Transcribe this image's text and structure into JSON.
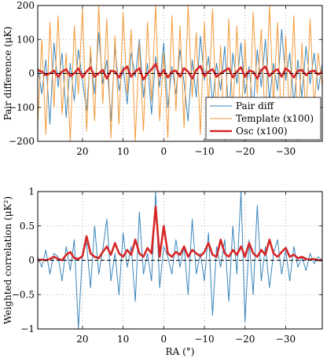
{
  "chart_data": [
    {
      "type": "line",
      "ylabel": "Pair difference (μK)",
      "xlim": [
        31,
        -39
      ],
      "ylim": [
        -200,
        200
      ],
      "xticks": [
        20,
        10,
        0,
        -10,
        -20,
        -30
      ],
      "xtick_labels": [
        "20",
        "10",
        "0",
        "−10",
        "−20",
        "−30"
      ],
      "yticks": [
        -200,
        -100,
        0,
        100,
        200
      ],
      "ytick_labels": [
        "−200",
        "−100",
        "0",
        "100",
        "200"
      ],
      "grid": true,
      "legend_position": "bottom-right",
      "series": [
        {
          "name": "Pair diff",
          "color": "#3a86bb",
          "x": [
            31,
            30,
            29,
            28,
            27,
            26,
            25,
            24,
            23,
            22,
            21,
            20,
            19,
            18,
            17,
            16,
            15,
            14,
            13,
            12,
            11,
            10,
            9,
            8,
            7,
            6,
            5,
            4,
            3,
            2,
            1,
            0,
            -1,
            -2,
            -3,
            -4,
            -5,
            -6,
            -7,
            -8,
            -9,
            -10,
            -11,
            -12,
            -13,
            -14,
            -15,
            -16,
            -17,
            -18,
            -19,
            -20,
            -21,
            -22,
            -23,
            -24,
            -25,
            -26,
            -27,
            -28,
            -29,
            -30,
            -31,
            -32,
            -33,
            -34,
            -35,
            -36,
            -37,
            -38,
            -39
          ],
          "values": [
            20,
            -60,
            40,
            -150,
            90,
            -40,
            60,
            -130,
            30,
            -80,
            70,
            -20,
            -110,
            50,
            -60,
            120,
            -30,
            40,
            -140,
            80,
            -50,
            20,
            -90,
            60,
            -10,
            100,
            -70,
            30,
            -120,
            50,
            -40,
            90,
            -100,
            20,
            -60,
            70,
            -30,
            -140,
            40,
            -70,
            110,
            -20,
            50,
            -90,
            30,
            -50,
            80,
            -130,
            60,
            -30,
            90,
            -60,
            20,
            -110,
            70,
            -40,
            100,
            -80,
            30,
            -50,
            130,
            -20,
            60,
            -90,
            40,
            -70,
            80,
            -30,
            60,
            -50,
            30
          ]
        },
        {
          "name": "Template (x100)",
          "color": "#f39a3a",
          "x": [
            31,
            30,
            29,
            28,
            27,
            26,
            25,
            24,
            23,
            22,
            21,
            20,
            19,
            18,
            17,
            16,
            15,
            14,
            13,
            12,
            11,
            10,
            9,
            8,
            7,
            6,
            5,
            4,
            3,
            2,
            1,
            0,
            -1,
            -2,
            -3,
            -4,
            -5,
            -6,
            -7,
            -8,
            -9,
            -10,
            -11,
            -12,
            -13,
            -14,
            -15,
            -16,
            -17,
            -18,
            -19,
            -20,
            -21,
            -22,
            -23,
            -24,
            -25,
            -26,
            -27,
            -28,
            -29,
            -30,
            -31,
            -32,
            -33,
            -34,
            -35,
            -36,
            -37,
            -38,
            -39
          ],
          "values": [
            -150,
            100,
            -180,
            150,
            -100,
            170,
            -120,
            60,
            -200,
            140,
            -60,
            190,
            -170,
            80,
            -140,
            200,
            -90,
            160,
            -190,
            110,
            -150,
            180,
            -60,
            130,
            -200,
            90,
            -170,
            150,
            -80,
            200,
            -140,
            60,
            -190,
            170,
            -110,
            140,
            -160,
            200,
            -70,
            120,
            -180,
            150,
            -100,
            190,
            -150,
            80,
            -200,
            160,
            -120,
            140,
            -170,
            100,
            -190,
            180,
            -60,
            130,
            -160,
            200,
            -90,
            150,
            -180,
            110,
            -140,
            170,
            -200,
            90,
            -130,
            160,
            -100,
            60,
            -40
          ]
        },
        {
          "name": "Osc (x100)",
          "color": "#d62728",
          "x": [
            31,
            30,
            29,
            28,
            27,
            26,
            25,
            24,
            23,
            22,
            21,
            20,
            19,
            18,
            17,
            16,
            15,
            14,
            13,
            12,
            11,
            10,
            9,
            8,
            7,
            6,
            5,
            4,
            3,
            2,
            1,
            0,
            -1,
            -2,
            -3,
            -4,
            -5,
            -6,
            -7,
            -8,
            -9,
            -10,
            -11,
            -12,
            -13,
            -14,
            -15,
            -16,
            -17,
            -18,
            -19,
            -20,
            -21,
            -22,
            -23,
            -24,
            -25,
            -26,
            -27,
            -28,
            -29,
            -30,
            -31,
            -32,
            -33,
            -34,
            -35,
            -36,
            -37,
            -38,
            -39
          ],
          "values": [
            10,
            5,
            -5,
            0,
            8,
            -10,
            5,
            12,
            -8,
            0,
            15,
            -12,
            5,
            18,
            -10,
            0,
            10,
            -15,
            8,
            5,
            -12,
            10,
            20,
            -10,
            5,
            15,
            -18,
            0,
            12,
            28,
            -8,
            10,
            -12,
            5,
            8,
            -10,
            15,
            5,
            -15,
            10,
            22,
            -8,
            5,
            12,
            -10,
            0,
            8,
            15,
            -12,
            5,
            18,
            -10,
            8,
            5,
            -15,
            10,
            20,
            -8,
            5,
            12,
            -10,
            15,
            5,
            -12,
            8,
            10,
            -5,
            5,
            8,
            -3,
            5
          ]
        },
        {
          "name": "",
          "color": "#000000",
          "dashed": true,
          "x": [
            31,
            -39
          ],
          "values": [
            0,
            0
          ]
        }
      ]
    },
    {
      "type": "line",
      "xlabel": "RA (°)",
      "ylabel": "Weighted correlation (μK²)",
      "xlim": [
        31,
        -39
      ],
      "ylim": [
        -1,
        1
      ],
      "xticks": [
        20,
        10,
        0,
        -10,
        -20,
        -30
      ],
      "xtick_labels": [
        "20",
        "10",
        "0",
        "−10",
        "−20",
        "−30"
      ],
      "yticks": [
        -1,
        -0.5,
        0,
        0.5,
        1
      ],
      "ytick_labels": [
        "−1",
        "−0.5",
        "0",
        "0.5",
        "1"
      ],
      "grid": true,
      "series": [
        {
          "name": "",
          "color": "#3a86bb",
          "x": [
            31,
            30,
            29,
            28,
            27,
            26,
            25,
            24,
            23,
            22,
            21,
            20,
            19,
            18,
            17,
            16,
            15,
            14,
            13,
            12,
            11,
            10,
            9,
            8,
            7,
            6,
            5,
            4,
            3,
            2,
            1,
            0,
            -1,
            -2,
            -3,
            -4,
            -5,
            -6,
            -7,
            -8,
            -9,
            -10,
            -11,
            -12,
            -13,
            -14,
            -15,
            -16,
            -17,
            -18,
            -19,
            -20,
            -21,
            -22,
            -23,
            -24,
            -25,
            -26,
            -27,
            -28,
            -29,
            -30,
            -31,
            -32,
            -33,
            -34,
            -35,
            -36,
            -37,
            -38,
            -39
          ],
          "values": [
            0.05,
            -0.1,
            0.15,
            -0.2,
            0.1,
            0.05,
            -0.3,
            0.2,
            -0.15,
            0.3,
            -1,
            0.1,
            0.25,
            -0.4,
            0.5,
            -0.2,
            0.15,
            0.6,
            -0.3,
            0.1,
            -0.5,
            0.4,
            -0.1,
            0.2,
            -0.6,
            0.7,
            -0.2,
            0.1,
            -0.3,
            1,
            -0.4,
            0.2,
            0.05,
            -0.2,
            0.3,
            -0.1,
            0.2,
            -0.5,
            0.6,
            -0.2,
            0.1,
            -0.3,
            0.4,
            -0.8,
            0.2,
            -0.1,
            0.3,
            -0.6,
            0.5,
            -0.2,
            1,
            -0.9,
            0.3,
            -0.5,
            0.8,
            -0.3,
            0.2,
            -0.4,
            0.1,
            0.3,
            -0.2,
            0.15,
            -0.3,
            0.2,
            -0.1,
            0.05,
            -0.15,
            0.1,
            -0.05,
            0.05,
            0
          ]
        },
        {
          "name": "",
          "color": "#d62728",
          "x": [
            31,
            30,
            29,
            28,
            27,
            26,
            25,
            24,
            23,
            22,
            21,
            20,
            19,
            18,
            17,
            16,
            15,
            14,
            13,
            12,
            11,
            10,
            9,
            8,
            7,
            6,
            5,
            4,
            3,
            2,
            1,
            0,
            -1,
            -2,
            -3,
            -4,
            -5,
            -6,
            -7,
            -8,
            -9,
            -10,
            -11,
            -12,
            -13,
            -14,
            -15,
            -16,
            -17,
            -18,
            -19,
            -20,
            -21,
            -22,
            -23,
            -24,
            -25,
            -26,
            -27,
            -28,
            -29,
            -30,
            -31,
            -32,
            -33,
            -34,
            -35,
            -36,
            -37,
            -38,
            -39
          ],
          "values": [
            0,
            0.01,
            0,
            0.02,
            0.05,
            0.02,
            0,
            0.08,
            0.12,
            0.03,
            0.02,
            0.06,
            0.35,
            0.1,
            0.05,
            0.03,
            0.12,
            0.2,
            0.08,
            0.25,
            0.1,
            0.05,
            0.15,
            0.08,
            0.3,
            0.1,
            0.05,
            0.18,
            0.1,
            0.78,
            0.05,
            0.5,
            0.1,
            0.05,
            0.12,
            0.08,
            0.2,
            0.05,
            0.15,
            0.1,
            0.06,
            0.12,
            0.25,
            0.08,
            0.05,
            0.3,
            0.1,
            0.05,
            0.15,
            0.08,
            0.2,
            0.05,
            0.25,
            0.1,
            0.05,
            0.15,
            0.08,
            0.3,
            0.1,
            0.05,
            0.12,
            0.18,
            0.05,
            0.08,
            0.03,
            0.05,
            0.02,
            0.01,
            0.02,
            0,
            0
          ]
        },
        {
          "name": "",
          "color": "#000000",
          "dashed": true,
          "x": [
            31,
            -39
          ],
          "values": [
            0,
            0
          ]
        }
      ]
    }
  ]
}
